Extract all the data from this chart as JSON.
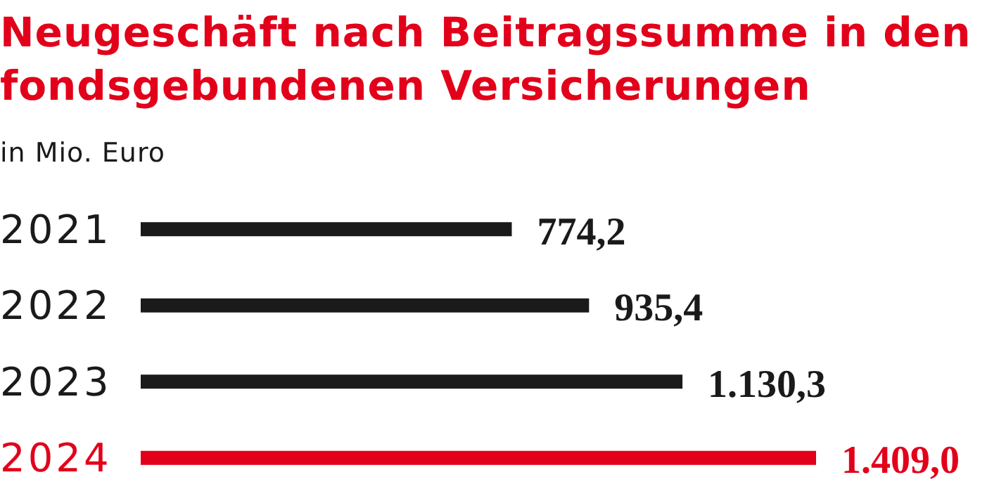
{
  "chart_data": {
    "type": "bar",
    "orientation": "horizontal",
    "title": "Neugeschäft nach Beitragssumme in den fondsgebundenen Versicherungen",
    "subtitle": "in Mio. Euro",
    "categories": [
      "2021",
      "2022",
      "2023",
      "2024"
    ],
    "values": [
      774.2,
      935.4,
      1130.3,
      1409.0
    ],
    "colors": [
      "#1a1a1a",
      "#1a1a1a",
      "#1a1a1a",
      "#e2001a"
    ],
    "value_labels": [
      "774,2",
      "935,4",
      "1.130,3",
      "1.409,0"
    ],
    "grid": false
  }
}
